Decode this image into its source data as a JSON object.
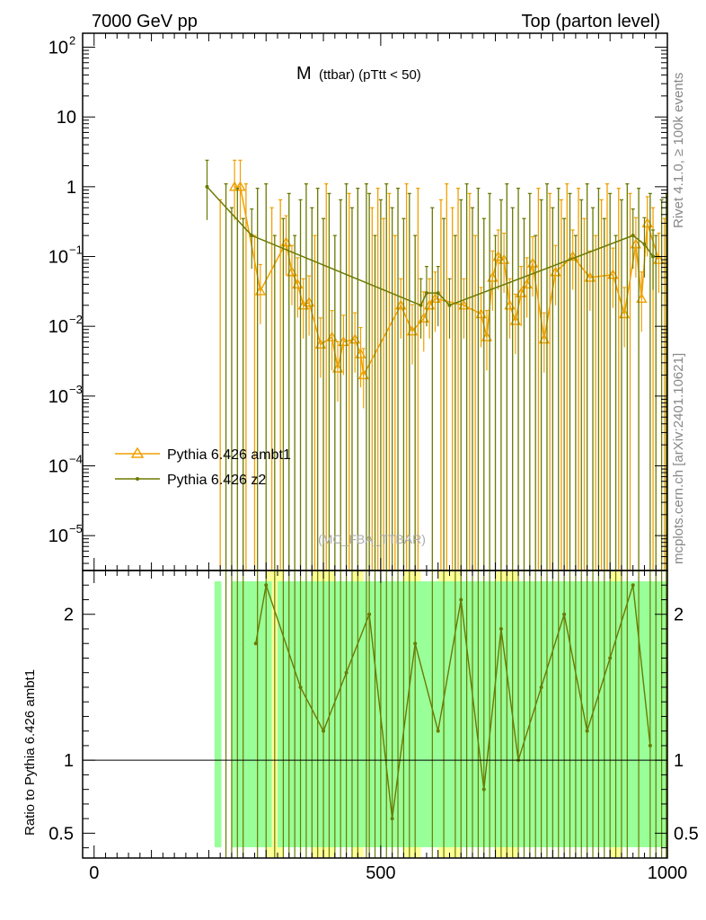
{
  "header": {
    "left": "7000 GeV pp",
    "right": "Top (parton level)"
  },
  "side_labels": {
    "rivet": "Rivet 4.1.0, ≥ 100k events",
    "mcplots": "mcplots.cern.ch [arXiv:2401.10621]"
  },
  "watermark": "(MC_FBA_TTBAR)",
  "colors": {
    "ambt1": "#f0a000",
    "z2": "#6b7a00",
    "band_green": "#99ff99",
    "band_yellow": "#ffff99"
  },
  "chart_data": [
    {
      "type": "line",
      "title_main": "M",
      "title_sub": "(ttbar) (pTtt < 50)",
      "xlim": [
        -20,
        1000
      ],
      "ylim_log10": [
        -5.5,
        2.2
      ],
      "yscale": "log",
      "x_ticks": [
        0,
        500,
        1000
      ],
      "y_ticks": [
        {
          "exp": 2,
          "label": "10",
          "sup": "2"
        },
        {
          "exp": 1,
          "label": "10",
          "sup": ""
        },
        {
          "exp": 0,
          "label": "1",
          "sup": ""
        },
        {
          "exp": -1,
          "label": "10",
          "sup": "−1"
        },
        {
          "exp": -2,
          "label": "10",
          "sup": "−2"
        },
        {
          "exp": -3,
          "label": "10",
          "sup": "−3"
        },
        {
          "exp": -4,
          "label": "10",
          "sup": "−4"
        },
        {
          "exp": -5,
          "label": "10",
          "sup": "−5"
        }
      ],
      "legend": [
        {
          "name": "Pythia 6.426 ambt1",
          "marker": "triangle"
        },
        {
          "name": "Pythia 6.426 z2",
          "marker": "dot"
        }
      ],
      "series": [
        {
          "name": "Pythia 6.426 ambt1",
          "points": [
            [
              245,
              1.0
            ],
            [
              255,
              1.0
            ],
            [
              290,
              0.032
            ],
            [
              335,
              0.16
            ],
            [
              345,
              0.06
            ],
            [
              355,
              0.04
            ],
            [
              365,
              0.02
            ],
            [
              375,
              0.022
            ],
            [
              395,
              0.0055
            ],
            [
              415,
              0.007
            ],
            [
              425,
              0.0025
            ],
            [
              435,
              0.006
            ],
            [
              455,
              0.0065
            ],
            [
              465,
              0.004
            ],
            [
              470,
              0.002
            ],
            [
              535,
              0.02
            ],
            [
              555,
              0.0085
            ],
            [
              575,
              0.013
            ],
            [
              585,
              0.02
            ],
            [
              595,
              0.025
            ],
            [
              645,
              0.02
            ],
            [
              675,
              0.015
            ],
            [
              685,
              0.007
            ],
            [
              695,
              0.05
            ],
            [
              705,
              0.1
            ],
            [
              715,
              0.09
            ],
            [
              725,
              0.02
            ],
            [
              735,
              0.012
            ],
            [
              745,
              0.03
            ],
            [
              755,
              0.04
            ],
            [
              765,
              0.08
            ],
            [
              785,
              0.0065
            ],
            [
              805,
              0.06
            ],
            [
              835,
              0.1
            ],
            [
              865,
              0.05
            ],
            [
              905,
              0.055
            ],
            [
              925,
              0.015
            ],
            [
              945,
              0.15
            ],
            [
              955,
              0.025
            ],
            [
              965,
              0.3
            ],
            [
              985,
              0.09
            ]
          ],
          "zeros": [
            220,
            265,
            280,
            310,
            325,
            385,
            405,
            445,
            485,
            495,
            505,
            515,
            525,
            545,
            565,
            605,
            615,
            625,
            635,
            655,
            665,
            775,
            795,
            815,
            825,
            845,
            855,
            875,
            885,
            895,
            915,
            935,
            975,
            995
          ]
        },
        {
          "name": "Pythia 6.426 z2",
          "points": [
            [
              197,
              1.0
            ],
            [
              275,
              0.2
            ],
            [
              570,
              0.02
            ],
            [
              580,
              0.03
            ],
            [
              600,
              0.03
            ],
            [
              620,
              0.02
            ],
            [
              940,
              0.2
            ],
            [
              960,
              0.15
            ],
            [
              975,
              0.1
            ]
          ],
          "zeros": [
            230,
            240,
            250,
            260,
            285,
            300,
            315,
            330,
            340,
            350,
            360,
            370,
            380,
            390,
            400,
            410,
            420,
            430,
            440,
            450,
            460,
            475,
            480,
            490,
            500,
            510,
            520,
            530,
            540,
            550,
            560,
            590,
            610,
            630,
            640,
            650,
            660,
            670,
            680,
            690,
            700,
            710,
            720,
            730,
            740,
            750,
            760,
            770,
            780,
            790,
            800,
            810,
            820,
            830,
            840,
            850,
            860,
            870,
            880,
            890,
            900,
            910,
            920,
            930,
            950,
            970,
            980,
            990,
            998
          ]
        }
      ]
    },
    {
      "type": "line",
      "ylabel": "Ratio to Pythia 6.426 ambt1",
      "xlim": [
        -20,
        1000
      ],
      "ylim": [
        0.33,
        2.3
      ],
      "x_ticks": [
        0,
        500,
        1000
      ],
      "y_ticks": [
        0.5,
        1,
        2
      ],
      "reference_line": 1,
      "band_green_ranges": [
        [
          210,
          222
        ],
        [
          240,
          310
        ],
        [
          320,
          1000
        ]
      ],
      "band_yellow_ranges": [
        [
          300,
          330
        ],
        [
          380,
          420
        ],
        [
          450,
          470
        ],
        [
          540,
          570
        ],
        [
          600,
          640
        ],
        [
          700,
          740
        ],
        [
          900,
          920
        ]
      ],
      "ratio_points": [
        [
          282,
          1.8
        ],
        [
          300,
          2.2
        ],
        [
          360,
          1.5
        ],
        [
          400,
          1.2
        ],
        [
          440,
          1.6
        ],
        [
          480,
          2.0
        ],
        [
          520,
          0.6
        ],
        [
          560,
          1.8
        ],
        [
          600,
          1.2
        ],
        [
          640,
          2.1
        ],
        [
          680,
          0.8
        ],
        [
          710,
          1.9
        ],
        [
          740,
          1.0
        ],
        [
          780,
          1.5
        ],
        [
          820,
          2.0
        ],
        [
          860,
          1.2
        ],
        [
          900,
          1.7
        ],
        [
          940,
          2.2
        ],
        [
          970,
          1.1
        ]
      ]
    }
  ],
  "x_tick_labels": [
    "0",
    "500",
    "1000"
  ],
  "ratio_tick_labels": [
    "0.5",
    "1",
    "2"
  ]
}
